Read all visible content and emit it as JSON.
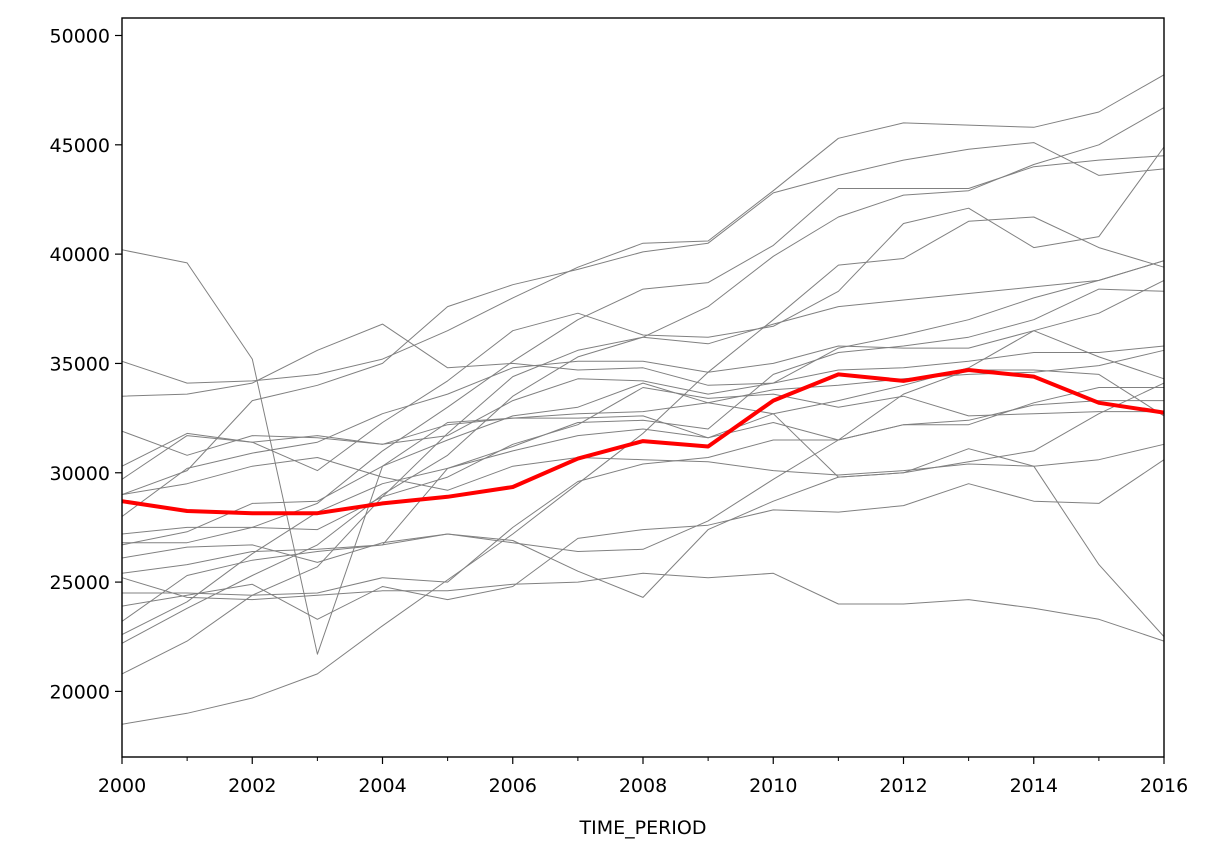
{
  "chart_data": {
    "type": "line",
    "title": "",
    "xlabel": "TIME_PERIOD",
    "ylabel": "",
    "xlim": [
      2000,
      2016
    ],
    "ylim": [
      17000,
      50800
    ],
    "grid": false,
    "legend": "none",
    "x": [
      2000,
      2001,
      2002,
      2003,
      2004,
      2005,
      2006,
      2007,
      2008,
      2009,
      2010,
      2011,
      2012,
      2013,
      2014,
      2015,
      2016
    ],
    "x_ticks": [
      2000,
      2002,
      2004,
      2006,
      2008,
      2010,
      2012,
      2014,
      2016
    ],
    "x_tick_labels": [
      "2000",
      "2002",
      "2004",
      "2006",
      "2008",
      "2010",
      "2012",
      "2014",
      "2016"
    ],
    "x_minor_ticks": [
      2001,
      2003,
      2005,
      2007,
      2009,
      2011,
      2013,
      2015
    ],
    "y_ticks": [
      20000,
      25000,
      30000,
      35000,
      40000,
      45000,
      50000
    ],
    "y_tick_labels": [
      "20000",
      "25000",
      "30000",
      "35000",
      "40000",
      "45000",
      "50000"
    ],
    "colors": {
      "series": "#808080",
      "mean": "#ff0000",
      "axes": "#000000"
    },
    "mean_series": {
      "values": [
        28700,
        28250,
        28150,
        28150,
        28600,
        28900,
        29350,
        30650,
        31450,
        31200,
        33300,
        34500,
        34200,
        34700,
        34400,
        33200,
        32750
      ]
    },
    "series": [
      {
        "values": [
          40200,
          39600,
          35200,
          21700,
          30300,
          32300,
          32500,
          32700,
          32800,
          33200,
          33800,
          34000,
          34300,
          34500,
          34600,
          34900,
          35600
        ]
      },
      {
        "values": [
          35100,
          34100,
          34200,
          34500,
          35200,
          36500,
          38000,
          39400,
          40500,
          40600,
          42900,
          45300,
          46000,
          45900,
          45800,
          46500,
          48200
        ]
      },
      {
        "values": [
          33500,
          33600,
          34100,
          35600,
          36800,
          34800,
          35000,
          34700,
          34800,
          34000,
          34100,
          35700,
          36300,
          37000,
          38000,
          38800,
          39700
        ]
      },
      {
        "values": [
          31900,
          30800,
          31700,
          31600,
          31300,
          32200,
          32500,
          32500,
          32600,
          31600,
          32700,
          33300,
          34000,
          34800,
          36500,
          37300,
          38800
        ]
      },
      {
        "values": [
          30300,
          31800,
          31400,
          31700,
          31300,
          31700,
          33300,
          34300,
          34200,
          33600,
          34100,
          34700,
          34800,
          35100,
          35500,
          35500,
          35800
        ]
      },
      {
        "values": [
          29700,
          31700,
          31400,
          30100,
          32300,
          34200,
          36500,
          37300,
          36300,
          36200,
          36700,
          38300,
          41400,
          42100,
          40300,
          40800,
          44900
        ]
      },
      {
        "values": [
          29000,
          30100,
          33300,
          34000,
          35000,
          37600,
          38600,
          39300,
          40100,
          40500,
          42800,
          43600,
          44300,
          44800,
          45100,
          43600,
          43900
        ]
      },
      {
        "values": [
          28000,
          30200,
          30900,
          31400,
          32700,
          33600,
          34800,
          35100,
          35100,
          34600,
          35000,
          35800,
          35700,
          35700,
          36500,
          35300,
          34300
        ]
      },
      {
        "values": [
          27200,
          27500,
          27500,
          28600,
          31000,
          33000,
          35100,
          37000,
          38400,
          38700,
          40400,
          43000,
          43000,
          43000,
          44000,
          44300,
          44500
        ]
      },
      {
        "values": [
          26800,
          26800,
          27500,
          27400,
          28900,
          29800,
          31300,
          32200,
          33900,
          33400,
          33600,
          33000,
          33500,
          32600,
          32700,
          32800,
          32800
        ]
      },
      {
        "values": [
          26100,
          26600,
          26700,
          25900,
          26800,
          27200,
          26800,
          26400,
          26500,
          27800,
          29700,
          31500,
          33600,
          34700,
          34700,
          34500,
          32600
        ]
      },
      {
        "values": [
          25400,
          25800,
          26400,
          26500,
          26700,
          27200,
          26900,
          25500,
          24300,
          27400,
          28700,
          29800,
          30000,
          30500,
          31000,
          32700,
          34100
        ]
      },
      {
        "values": [
          25200,
          24300,
          24200,
          24400,
          24600,
          24600,
          24900,
          25000,
          25400,
          25200,
          25400,
          24000,
          24000,
          24200,
          23800,
          23300,
          22300
        ]
      },
      {
        "values": [
          24500,
          24500,
          24400,
          24500,
          25200,
          25000,
          27500,
          29600,
          30400,
          30700,
          31500,
          31500,
          32200,
          32400,
          33100,
          33300,
          33300
        ]
      },
      {
        "values": [
          23900,
          24400,
          24900,
          23300,
          24800,
          24200,
          24800,
          27000,
          27400,
          27600,
          28300,
          28200,
          28500,
          29500,
          28700,
          28600,
          30600
        ]
      },
      {
        "values": [
          23200,
          25300,
          26000,
          26400,
          26700,
          30200,
          31000,
          31700,
          32000,
          31600,
          32300,
          31500,
          32200,
          32200,
          33200,
          33900,
          33900
        ]
      },
      {
        "values": [
          22600,
          24100,
          26300,
          28200,
          29500,
          30200,
          31200,
          32300,
          32400,
          32000,
          34500,
          35500,
          35800,
          36200,
          37000,
          38400,
          38300
        ]
      },
      {
        "values": [
          22200,
          23800,
          25300,
          26700,
          29000,
          30800,
          33500,
          35300,
          36200,
          35900,
          36800,
          37600,
          37900,
          38200,
          38500,
          38800,
          39700
        ]
      },
      {
        "values": [
          20800,
          22300,
          24400,
          25700,
          28900,
          31800,
          34400,
          35600,
          36200,
          37600,
          39900,
          41700,
          42700,
          42900,
          44100,
          45000,
          46700
        ]
      },
      {
        "values": [
          18500,
          19000,
          19700,
          20800,
          23000,
          25100,
          27200,
          29500,
          31800,
          34600,
          37000,
          39500,
          39800,
          41500,
          41700,
          40300,
          39400
        ]
      },
      {
        "values": [
          26700,
          27300,
          28600,
          28700,
          30300,
          31500,
          32600,
          33000,
          34100,
          33200,
          32700,
          29800,
          30000,
          31100,
          30300,
          25800,
          22500
        ]
      },
      {
        "values": [
          29000,
          29500,
          30300,
          30700,
          29800,
          29200,
          30300,
          30700,
          30600,
          30500,
          30100,
          29900,
          30100,
          30400,
          30300,
          30600,
          31300
        ]
      }
    ]
  }
}
